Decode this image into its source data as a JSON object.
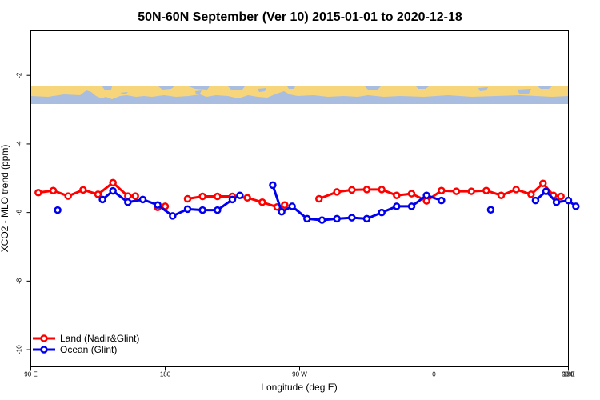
{
  "colors": {
    "land": "#ff0000",
    "ocean": "#0000ee",
    "map_land": "#f7d57a",
    "map_water": "#a8bde0",
    "background": "#ffffff",
    "axis": "#000000"
  },
  "chart_data": {
    "type": "line",
    "title": "50N-60N September (Ver 10)   2015-01-01 to 2020-12-18",
    "xlabel": "Longitude (deg E)",
    "ylabel": "XCO2 - MLO trend (ppm)",
    "xlim": [
      90,
      450
    ],
    "ylim": [
      -10.5,
      -0.7
    ],
    "x_tick_values": [
      90,
      180,
      270,
      360,
      450,
      540
    ],
    "x_tick_labels": [
      "90 E",
      "180",
      "90 W",
      "0",
      "90 E",
      "180"
    ],
    "y_tick_values": [
      -2,
      -4,
      -6,
      -8,
      -10
    ],
    "y_tick_labels": [
      "-2",
      "-4",
      "-6",
      "-8",
      "-10"
    ],
    "map_band": {
      "y_top": -2.3,
      "y_bottom": -2.8
    },
    "grid": false,
    "legend_position": "bottom-left",
    "series": [
      {
        "name": "Land (Nadir&Glint)",
        "segments": [
          [
            [
              95,
              -5.42
            ],
            [
              105,
              -5.36
            ],
            [
              115,
              -5.52
            ],
            [
              125,
              -5.34
            ],
            [
              135,
              -5.47
            ],
            [
              145,
              -5.13
            ],
            [
              155,
              -5.52
            ],
            [
              160,
              -5.52
            ]
          ],
          [
            [
              175,
              -5.85
            ],
            [
              180,
              -5.82
            ]
          ],
          [
            [
              195,
              -5.6
            ],
            [
              205,
              -5.53
            ],
            [
              215,
              -5.53
            ],
            [
              225,
              -5.53
            ],
            [
              235,
              -5.57
            ],
            [
              245,
              -5.7
            ],
            [
              255,
              -5.84
            ],
            [
              260,
              -5.78
            ]
          ],
          [
            [
              283,
              -5.6
            ],
            [
              295,
              -5.4
            ],
            [
              305,
              -5.34
            ],
            [
              315,
              -5.33
            ],
            [
              325,
              -5.33
            ],
            [
              335,
              -5.5
            ],
            [
              345,
              -5.45
            ],
            [
              355,
              -5.66
            ],
            [
              365,
              -5.36
            ],
            [
              375,
              -5.38
            ],
            [
              385,
              -5.38
            ],
            [
              395,
              -5.36
            ],
            [
              405,
              -5.5
            ],
            [
              415,
              -5.33
            ],
            [
              425,
              -5.47
            ],
            [
              433,
              -5.15
            ],
            [
              440,
              -5.5
            ],
            [
              445,
              -5.53
            ]
          ]
        ]
      },
      {
        "name": "Ocean (Glint)",
        "segments": [
          [
            [
              108,
              -5.93
            ]
          ],
          [
            [
              138,
              -5.62
            ],
            [
              145,
              -5.37
            ],
            [
              155,
              -5.7
            ],
            [
              165,
              -5.62
            ],
            [
              175,
              -5.78
            ],
            [
              185,
              -6.1
            ],
            [
              195,
              -5.9
            ],
            [
              205,
              -5.93
            ],
            [
              215,
              -5.93
            ],
            [
              225,
              -5.62
            ],
            [
              230,
              -5.5
            ]
          ],
          [
            [
              252,
              -5.2
            ],
            [
              258,
              -5.98
            ],
            [
              265,
              -5.82
            ],
            [
              275,
              -6.18
            ],
            [
              285,
              -6.22
            ],
            [
              295,
              -6.18
            ],
            [
              305,
              -6.15
            ],
            [
              315,
              -6.18
            ],
            [
              325,
              -6.0
            ],
            [
              335,
              -5.82
            ],
            [
              345,
              -5.82
            ],
            [
              355,
              -5.5
            ],
            [
              365,
              -5.65
            ]
          ],
          [
            [
              398,
              -5.92
            ]
          ],
          [
            [
              428,
              -5.65
            ],
            [
              435,
              -5.38
            ],
            [
              442,
              -5.7
            ],
            [
              450,
              -5.65
            ],
            [
              455,
              -5.82
            ]
          ]
        ]
      }
    ]
  }
}
